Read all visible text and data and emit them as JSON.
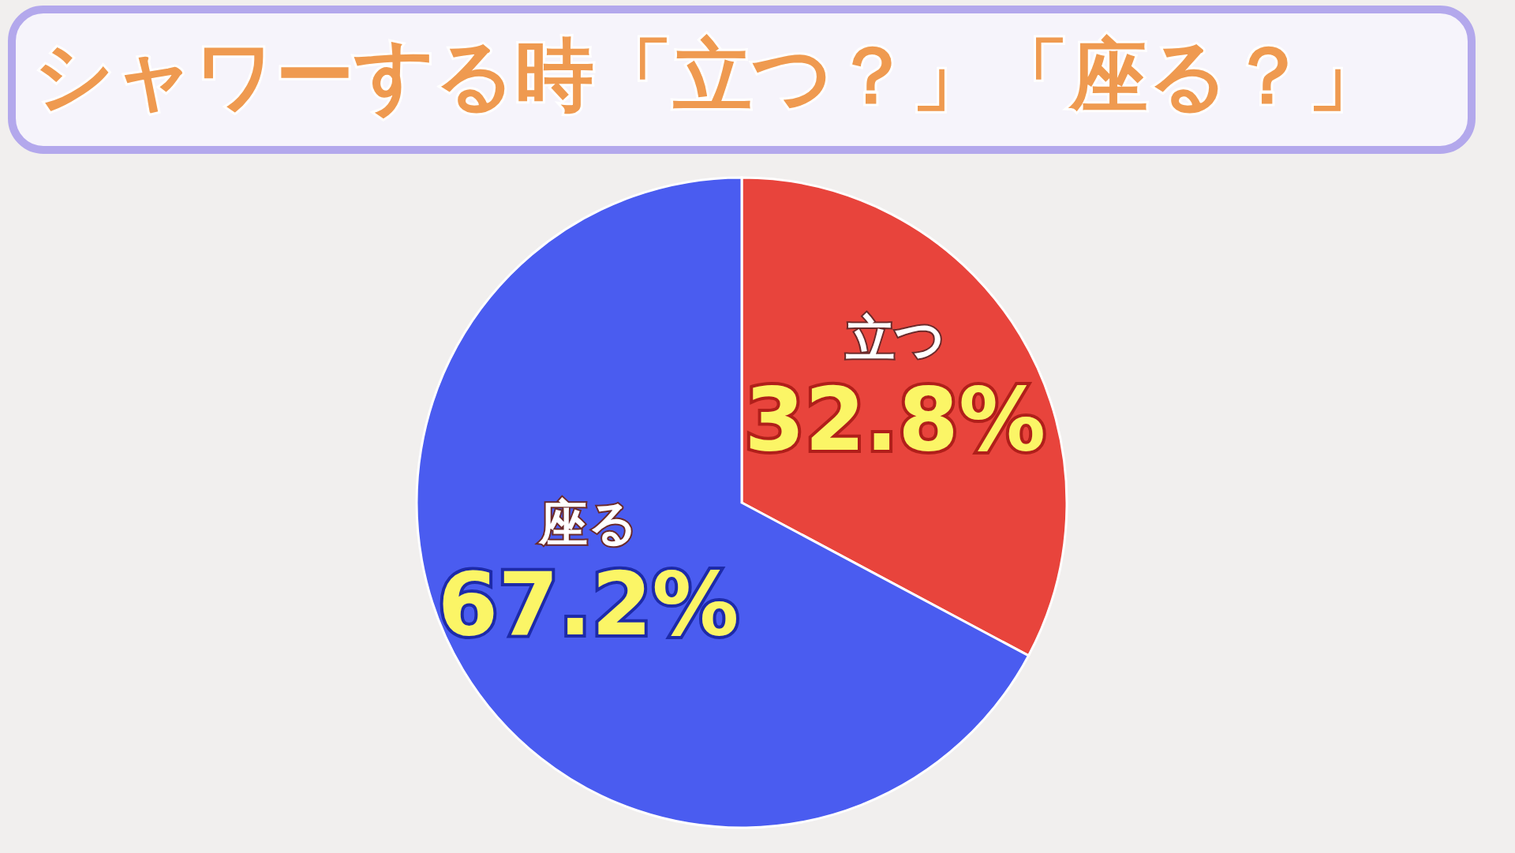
{
  "chart_data": {
    "type": "pie",
    "title": "シャワーする時「立つ？」「座る？」",
    "categories": [
      "立つ",
      "座る"
    ],
    "values": [
      32.8,
      67.2
    ],
    "colors": [
      "#e8443c",
      "#4a5cf0"
    ],
    "value_labels": [
      "32.8%",
      "67.2%"
    ]
  }
}
